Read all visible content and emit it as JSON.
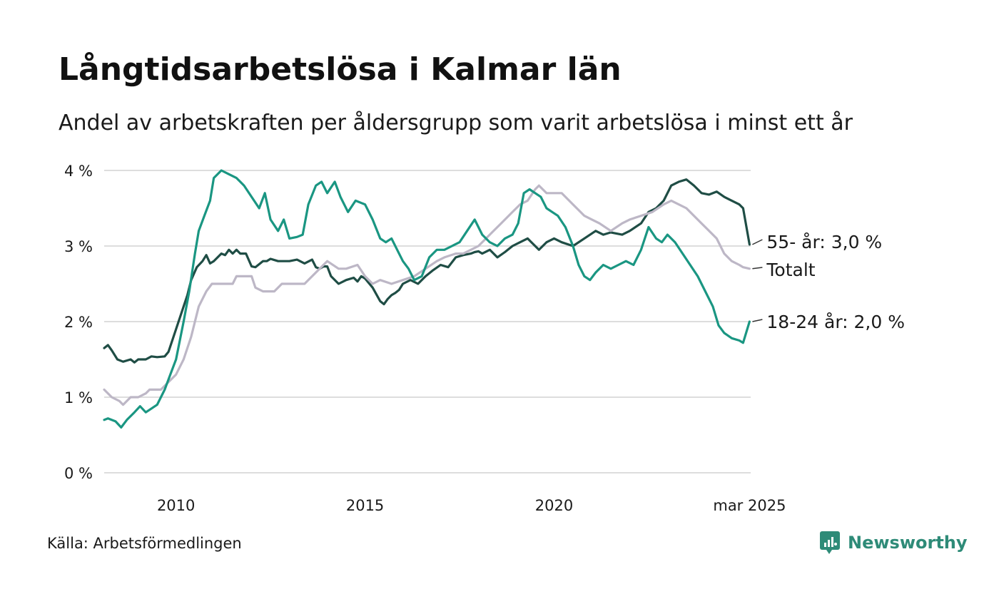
{
  "header": {
    "title": "Långtidsarbetslösa i Kalmar län",
    "subtitle": "Andel av arbetskraften per åldersgrupp som varit arbetslösa i minst ett år"
  },
  "footer": {
    "source": "Källa: Arbetsförmedlingen",
    "brand": "Newsworthy"
  },
  "colors": {
    "age55": "#1f4d45",
    "total": "#bdb7c6",
    "age18_24": "#1a9682",
    "grid": "#dddddd",
    "brand": "#2e8b78"
  },
  "chart_data": {
    "type": "line",
    "title": "Långtidsarbetslösa i Kalmar län",
    "subtitle": "Andel av arbetskraften per åldersgrupp som varit arbetslösa i minst ett år",
    "ylim": [
      0,
      4
    ],
    "xlim": [
      2008.1,
      2025.2
    ],
    "yticks": [
      {
        "value": 0,
        "label": "0 %"
      },
      {
        "value": 1,
        "label": "1 %"
      },
      {
        "value": 2,
        "label": "2 %"
      },
      {
        "value": 3,
        "label": "3 %"
      },
      {
        "value": 4,
        "label": "4 %"
      }
    ],
    "xticks": [
      {
        "value": 2010,
        "label": "2010"
      },
      {
        "value": 2015,
        "label": "2015"
      },
      {
        "value": 2020,
        "label": "2020"
      },
      {
        "value": 2025.17,
        "label": "mar 2025"
      }
    ],
    "grid": true,
    "legend": "direct labels at line ends",
    "series": [
      {
        "key": "age55",
        "end_label": "55- år: 3,0 %",
        "points": [
          [
            2008.1,
            1.65
          ],
          [
            2008.2,
            1.69
          ],
          [
            2008.3,
            1.62
          ],
          [
            2008.45,
            1.5
          ],
          [
            2008.6,
            1.47
          ],
          [
            2008.8,
            1.5
          ],
          [
            2008.9,
            1.46
          ],
          [
            2009.0,
            1.5
          ],
          [
            2009.2,
            1.5
          ],
          [
            2009.35,
            1.54
          ],
          [
            2009.5,
            1.53
          ],
          [
            2009.7,
            1.54
          ],
          [
            2009.8,
            1.6
          ],
          [
            2010.0,
            1.9
          ],
          [
            2010.2,
            2.2
          ],
          [
            2010.3,
            2.35
          ],
          [
            2010.4,
            2.55
          ],
          [
            2010.55,
            2.72
          ],
          [
            2010.7,
            2.8
          ],
          [
            2010.8,
            2.88
          ],
          [
            2010.9,
            2.77
          ],
          [
            2011.0,
            2.8
          ],
          [
            2011.2,
            2.9
          ],
          [
            2011.3,
            2.88
          ],
          [
            2011.4,
            2.95
          ],
          [
            2011.5,
            2.9
          ],
          [
            2011.6,
            2.95
          ],
          [
            2011.7,
            2.9
          ],
          [
            2011.85,
            2.9
          ],
          [
            2012.0,
            2.73
          ],
          [
            2012.1,
            2.72
          ],
          [
            2012.3,
            2.8
          ],
          [
            2012.4,
            2.8
          ],
          [
            2012.5,
            2.83
          ],
          [
            2012.7,
            2.8
          ],
          [
            2012.9,
            2.8
          ],
          [
            2013.0,
            2.8
          ],
          [
            2013.2,
            2.82
          ],
          [
            2013.4,
            2.77
          ],
          [
            2013.6,
            2.82
          ],
          [
            2013.7,
            2.72
          ],
          [
            2013.8,
            2.7
          ],
          [
            2013.9,
            2.73
          ],
          [
            2014.0,
            2.73
          ],
          [
            2014.1,
            2.6
          ],
          [
            2014.3,
            2.5
          ],
          [
            2014.5,
            2.55
          ],
          [
            2014.7,
            2.58
          ],
          [
            2014.8,
            2.53
          ],
          [
            2014.9,
            2.6
          ],
          [
            2015.0,
            2.57
          ],
          [
            2015.2,
            2.45
          ],
          [
            2015.4,
            2.27
          ],
          [
            2015.5,
            2.23
          ],
          [
            2015.6,
            2.3
          ],
          [
            2015.7,
            2.35
          ],
          [
            2015.8,
            2.38
          ],
          [
            2015.9,
            2.42
          ],
          [
            2016.0,
            2.5
          ],
          [
            2016.2,
            2.55
          ],
          [
            2016.4,
            2.5
          ],
          [
            2016.6,
            2.6
          ],
          [
            2016.8,
            2.68
          ],
          [
            2017.0,
            2.75
          ],
          [
            2017.2,
            2.72
          ],
          [
            2017.4,
            2.85
          ],
          [
            2017.6,
            2.88
          ],
          [
            2017.8,
            2.9
          ],
          [
            2017.9,
            2.92
          ],
          [
            2018.0,
            2.93
          ],
          [
            2018.1,
            2.9
          ],
          [
            2018.3,
            2.95
          ],
          [
            2018.5,
            2.85
          ],
          [
            2018.7,
            2.92
          ],
          [
            2018.9,
            3.0
          ],
          [
            2019.1,
            3.05
          ],
          [
            2019.3,
            3.1
          ],
          [
            2019.4,
            3.05
          ],
          [
            2019.6,
            2.95
          ],
          [
            2019.8,
            3.05
          ],
          [
            2020.0,
            3.1
          ],
          [
            2020.2,
            3.05
          ],
          [
            2020.5,
            3.0
          ],
          [
            2020.8,
            3.1
          ],
          [
            2021.1,
            3.2
          ],
          [
            2021.3,
            3.15
          ],
          [
            2021.5,
            3.18
          ],
          [
            2021.8,
            3.15
          ],
          [
            2022.0,
            3.2
          ],
          [
            2022.3,
            3.3
          ],
          [
            2022.5,
            3.45
          ],
          [
            2022.7,
            3.5
          ],
          [
            2022.9,
            3.6
          ],
          [
            2023.1,
            3.8
          ],
          [
            2023.3,
            3.85
          ],
          [
            2023.5,
            3.88
          ],
          [
            2023.7,
            3.8
          ],
          [
            2023.9,
            3.7
          ],
          [
            2024.1,
            3.68
          ],
          [
            2024.3,
            3.72
          ],
          [
            2024.5,
            3.65
          ],
          [
            2024.7,
            3.6
          ],
          [
            2024.9,
            3.55
          ],
          [
            2025.0,
            3.5
          ],
          [
            2025.17,
            3.02
          ]
        ]
      },
      {
        "key": "total",
        "end_label": "Totalt",
        "points": [
          [
            2008.1,
            1.1
          ],
          [
            2008.3,
            1.0
          ],
          [
            2008.5,
            0.95
          ],
          [
            2008.6,
            0.9
          ],
          [
            2008.8,
            1.0
          ],
          [
            2009.0,
            1.0
          ],
          [
            2009.2,
            1.05
          ],
          [
            2009.3,
            1.1
          ],
          [
            2009.6,
            1.1
          ],
          [
            2009.8,
            1.2
          ],
          [
            2010.0,
            1.3
          ],
          [
            2010.2,
            1.5
          ],
          [
            2010.4,
            1.8
          ],
          [
            2010.6,
            2.2
          ],
          [
            2010.8,
            2.4
          ],
          [
            2010.95,
            2.5
          ],
          [
            2011.5,
            2.5
          ],
          [
            2011.6,
            2.6
          ],
          [
            2012.0,
            2.6
          ],
          [
            2012.1,
            2.45
          ],
          [
            2012.3,
            2.4
          ],
          [
            2012.6,
            2.4
          ],
          [
            2012.8,
            2.5
          ],
          [
            2013.4,
            2.5
          ],
          [
            2013.6,
            2.6
          ],
          [
            2013.8,
            2.7
          ],
          [
            2014.0,
            2.8
          ],
          [
            2014.3,
            2.7
          ],
          [
            2014.5,
            2.7
          ],
          [
            2014.8,
            2.75
          ],
          [
            2015.0,
            2.6
          ],
          [
            2015.2,
            2.5
          ],
          [
            2015.4,
            2.55
          ],
          [
            2015.7,
            2.5
          ],
          [
            2016.0,
            2.55
          ],
          [
            2016.3,
            2.6
          ],
          [
            2016.6,
            2.7
          ],
          [
            2016.9,
            2.8
          ],
          [
            2017.1,
            2.85
          ],
          [
            2017.4,
            2.9
          ],
          [
            2017.6,
            2.9
          ],
          [
            2017.8,
            2.95
          ],
          [
            2018.0,
            3.0
          ],
          [
            2018.2,
            3.1
          ],
          [
            2018.4,
            3.2
          ],
          [
            2018.6,
            3.3
          ],
          [
            2018.9,
            3.45
          ],
          [
            2019.1,
            3.55
          ],
          [
            2019.3,
            3.6
          ],
          [
            2019.5,
            3.75
          ],
          [
            2019.6,
            3.8
          ],
          [
            2019.8,
            3.7
          ],
          [
            2020.2,
            3.7
          ],
          [
            2020.5,
            3.55
          ],
          [
            2020.8,
            3.4
          ],
          [
            2021.0,
            3.35
          ],
          [
            2021.2,
            3.3
          ],
          [
            2021.5,
            3.2
          ],
          [
            2021.8,
            3.3
          ],
          [
            2022.0,
            3.35
          ],
          [
            2022.3,
            3.4
          ],
          [
            2022.6,
            3.45
          ],
          [
            2022.9,
            3.55
          ],
          [
            2023.1,
            3.6
          ],
          [
            2023.3,
            3.55
          ],
          [
            2023.5,
            3.5
          ],
          [
            2023.7,
            3.4
          ],
          [
            2023.9,
            3.3
          ],
          [
            2024.1,
            3.2
          ],
          [
            2024.3,
            3.1
          ],
          [
            2024.5,
            2.9
          ],
          [
            2024.7,
            2.8
          ],
          [
            2024.9,
            2.75
          ],
          [
            2025.0,
            2.72
          ],
          [
            2025.17,
            2.7
          ]
        ]
      },
      {
        "key": "age18_24",
        "end_label": "18-24 år: 2,0 %",
        "points": [
          [
            2008.1,
            0.7
          ],
          [
            2008.2,
            0.72
          ],
          [
            2008.4,
            0.68
          ],
          [
            2008.55,
            0.6
          ],
          [
            2008.7,
            0.7
          ],
          [
            2008.9,
            0.8
          ],
          [
            2009.05,
            0.88
          ],
          [
            2009.2,
            0.8
          ],
          [
            2009.35,
            0.85
          ],
          [
            2009.5,
            0.9
          ],
          [
            2009.7,
            1.1
          ],
          [
            2009.85,
            1.3
          ],
          [
            2010.0,
            1.5
          ],
          [
            2010.2,
            2.0
          ],
          [
            2010.35,
            2.4
          ],
          [
            2010.5,
            2.9
          ],
          [
            2010.6,
            3.2
          ],
          [
            2010.75,
            3.4
          ],
          [
            2010.9,
            3.6
          ],
          [
            2011.0,
            3.9
          ],
          [
            2011.2,
            4.0
          ],
          [
            2011.4,
            3.95
          ],
          [
            2011.6,
            3.9
          ],
          [
            2011.8,
            3.8
          ],
          [
            2012.0,
            3.65
          ],
          [
            2012.2,
            3.5
          ],
          [
            2012.35,
            3.7
          ],
          [
            2012.5,
            3.35
          ],
          [
            2012.7,
            3.2
          ],
          [
            2012.85,
            3.35
          ],
          [
            2013.0,
            3.1
          ],
          [
            2013.2,
            3.12
          ],
          [
            2013.35,
            3.15
          ],
          [
            2013.5,
            3.55
          ],
          [
            2013.7,
            3.8
          ],
          [
            2013.85,
            3.85
          ],
          [
            2014.0,
            3.7
          ],
          [
            2014.2,
            3.85
          ],
          [
            2014.35,
            3.65
          ],
          [
            2014.55,
            3.45
          ],
          [
            2014.75,
            3.6
          ],
          [
            2015.0,
            3.55
          ],
          [
            2015.2,
            3.35
          ],
          [
            2015.4,
            3.1
          ],
          [
            2015.55,
            3.05
          ],
          [
            2015.7,
            3.1
          ],
          [
            2015.85,
            2.95
          ],
          [
            2016.0,
            2.8
          ],
          [
            2016.15,
            2.7
          ],
          [
            2016.3,
            2.55
          ],
          [
            2016.5,
            2.6
          ],
          [
            2016.7,
            2.85
          ],
          [
            2016.9,
            2.95
          ],
          [
            2017.1,
            2.95
          ],
          [
            2017.3,
            3.0
          ],
          [
            2017.5,
            3.05
          ],
          [
            2017.7,
            3.2
          ],
          [
            2017.9,
            3.35
          ],
          [
            2018.1,
            3.15
          ],
          [
            2018.3,
            3.05
          ],
          [
            2018.5,
            3.0
          ],
          [
            2018.7,
            3.1
          ],
          [
            2018.9,
            3.15
          ],
          [
            2019.05,
            3.3
          ],
          [
            2019.2,
            3.7
          ],
          [
            2019.35,
            3.75
          ],
          [
            2019.5,
            3.7
          ],
          [
            2019.65,
            3.65
          ],
          [
            2019.8,
            3.5
          ],
          [
            2019.95,
            3.45
          ],
          [
            2020.1,
            3.4
          ],
          [
            2020.3,
            3.25
          ],
          [
            2020.5,
            3.0
          ],
          [
            2020.65,
            2.75
          ],
          [
            2020.8,
            2.6
          ],
          [
            2020.95,
            2.55
          ],
          [
            2021.1,
            2.65
          ],
          [
            2021.3,
            2.75
          ],
          [
            2021.5,
            2.7
          ],
          [
            2021.7,
            2.75
          ],
          [
            2021.9,
            2.8
          ],
          [
            2022.1,
            2.75
          ],
          [
            2022.3,
            2.95
          ],
          [
            2022.5,
            3.25
          ],
          [
            2022.7,
            3.1
          ],
          [
            2022.85,
            3.05
          ],
          [
            2023.0,
            3.15
          ],
          [
            2023.2,
            3.05
          ],
          [
            2023.4,
            2.9
          ],
          [
            2023.6,
            2.75
          ],
          [
            2023.8,
            2.6
          ],
          [
            2024.0,
            2.4
          ],
          [
            2024.2,
            2.2
          ],
          [
            2024.35,
            1.95
          ],
          [
            2024.5,
            1.85
          ],
          [
            2024.7,
            1.78
          ],
          [
            2024.9,
            1.75
          ],
          [
            2025.0,
            1.72
          ],
          [
            2025.17,
            2.0
          ]
        ]
      }
    ]
  }
}
